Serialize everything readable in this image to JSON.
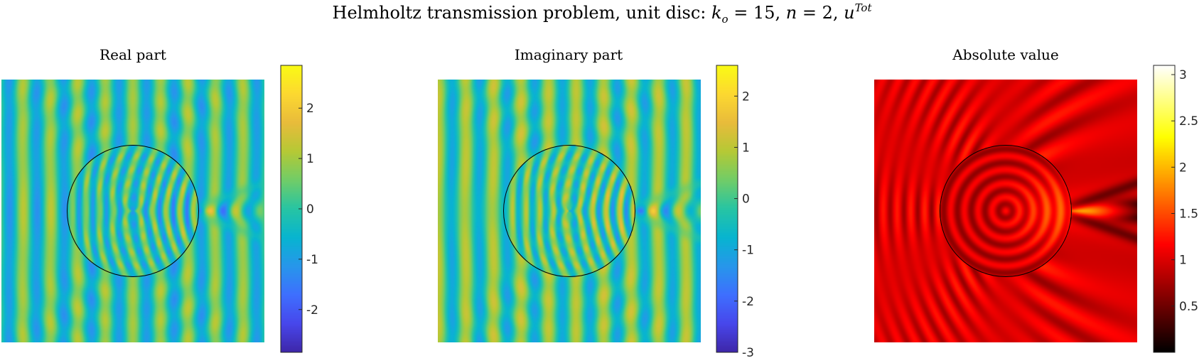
{
  "figure": {
    "title_main": "Helmholtz transmission problem, unit disc: ",
    "title_k": "k",
    "title_k_sub": "o",
    "title_k_eq": " = 15, ",
    "title_n": "n",
    "title_n_eq": " = 2, ",
    "title_u": "u",
    "title_u_sup": "Tot"
  },
  "chart_data": [
    {
      "type": "heatmap",
      "title": "Real part",
      "colormap": "parula",
      "quantity": "real",
      "clim": [
        -2.85,
        2.85
      ],
      "colorbar_ticks": [
        -2,
        -1,
        0,
        1,
        2
      ],
      "colorbar_ticklabels": [
        "-2",
        "-1",
        "0",
        "1",
        "2"
      ],
      "domain": [
        -2,
        2
      ],
      "k0": 15,
      "n": 2,
      "disc_radius": 1,
      "disc_outline_color": "#000000"
    },
    {
      "type": "heatmap",
      "title": "Imaginary part",
      "colormap": "parula",
      "quantity": "imag",
      "clim": [
        -3,
        2.6
      ],
      "colorbar_ticks": [
        -3,
        -2,
        -1,
        0,
        1,
        2
      ],
      "colorbar_ticklabels": [
        "-3",
        "-2",
        "-1",
        "0",
        "1",
        "2"
      ],
      "domain": [
        -2,
        2
      ],
      "k0": 15,
      "n": 2,
      "disc_radius": 1,
      "disc_outline_color": "#000000"
    },
    {
      "type": "heatmap",
      "title": "Absolute value",
      "colormap": "hot",
      "quantity": "abs",
      "clim": [
        0,
        3.1
      ],
      "colorbar_ticks": [
        0.5,
        1,
        1.5,
        2,
        2.5,
        3
      ],
      "colorbar_ticklabels": [
        "0.5",
        "1",
        "1.5",
        "2",
        "2.5",
        "3"
      ],
      "domain": [
        -2,
        2
      ],
      "k0": 15,
      "n": 2,
      "disc_radius": 1,
      "disc_outline_color": "#000000"
    }
  ]
}
